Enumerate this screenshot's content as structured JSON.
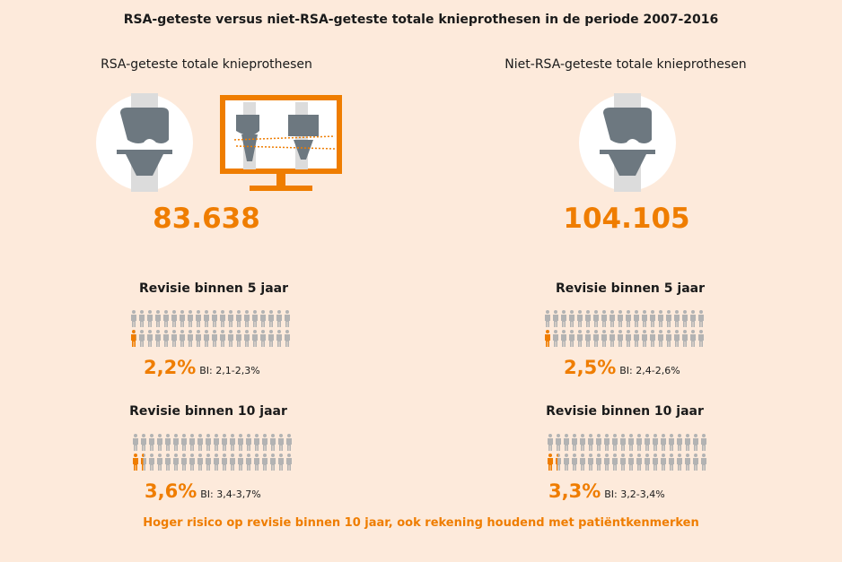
{
  "title": "RSA-geteste versus niet-RSA-geteste totale knieprothesen in de periode 2007-2016",
  "accent_color": "#ef7d00",
  "icon_color": "#b3b3b3",
  "people_per_grid": 40,
  "left": {
    "heading": "RSA-geteste totale knieprothesen",
    "count": "83.638",
    "icons": [
      "knee-implant-icon",
      "monitor-rsa-xray-icon"
    ],
    "rev5": {
      "label": "Revisie binnen 5 jaar",
      "pct": "2,2%",
      "value": 2.2,
      "ci": "BI: 2,1-2,3%"
    },
    "rev10": {
      "label": "Revisie binnen 10 jaar",
      "pct": "3,6%",
      "value": 3.6,
      "ci": "BI: 3,4-3,7%"
    }
  },
  "right": {
    "heading": "Niet-RSA-geteste totale knieprothesen",
    "count": "104.105",
    "icons": [
      "knee-implant-icon"
    ],
    "rev5": {
      "label": "Revisie binnen 5 jaar",
      "pct": "2,5%",
      "value": 2.5,
      "ci": "BI: 2,4-2,6%"
    },
    "rev10": {
      "label": "Revisie binnen 10 jaar",
      "pct": "3,3%",
      "value": 3.3,
      "ci": "BI: 3,2-3,4%"
    }
  },
  "footer": "Hoger risico op revisie binnen 10 jaar, ook rekening houdend met patiëntkenmerken"
}
